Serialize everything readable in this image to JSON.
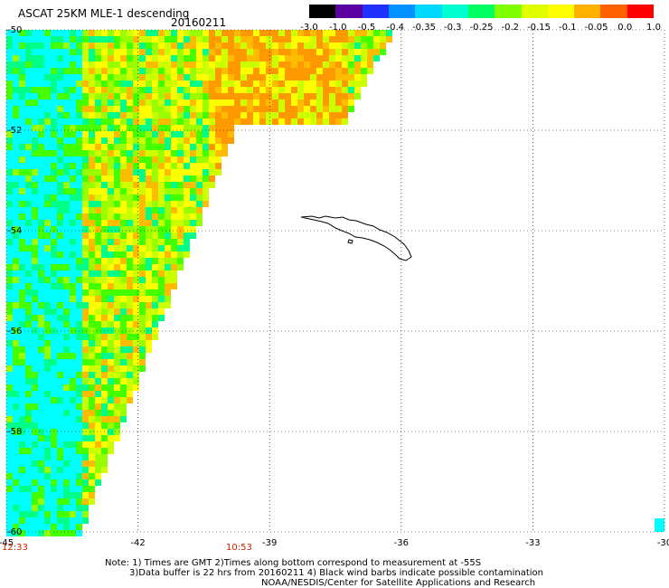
{
  "header": {
    "title": "ASCAT 25KM MLE-1 descending",
    "date": "20160211"
  },
  "colorbar": {
    "labels": [
      "-3.0",
      "-1.0",
      "-0.5",
      "-0.4",
      "-0.35",
      "-0.3",
      "-0.25",
      "-0.2",
      "-0.15",
      "-0.1",
      "-0.05",
      "0.0",
      "1.0"
    ],
    "colors": [
      "#000000",
      "#5a00a0",
      "#2030ff",
      "#0090ff",
      "#00d8ff",
      "#00ffd0",
      "#00ff60",
      "#80ff00",
      "#e0ff00",
      "#ffff00",
      "#ffb000",
      "#ff6000",
      "#ff0000"
    ]
  },
  "map": {
    "lat_labels": [
      "-50",
      "-52",
      "-54",
      "-56",
      "-58",
      "-60"
    ],
    "lon_labels": [
      "-45",
      "-42",
      "-39",
      "-36",
      "-33",
      "-30"
    ],
    "lat_range": [
      -60,
      -50
    ],
    "lon_range": [
      -45,
      -30
    ],
    "land_feature": "South Georgia",
    "swath_colors": [
      "#ff9900",
      "#ffbb00",
      "#ffff00",
      "#ccff00",
      "#99ff00",
      "#44ff00",
      "#00ff88",
      "#00ffff"
    ]
  },
  "times": {
    "left": "12:33",
    "mid": "10:53"
  },
  "notes": {
    "line1": "Note: 1) Times are GMT 2)Times along bottom correspond to measurement at -55S",
    "line2": "3)Data buffer is 22 hrs from 20160211 4) Black wind barbs indicate possible contamination",
    "line3": "NOAA/NESDIS/Center for Satellite Applications and Research"
  }
}
